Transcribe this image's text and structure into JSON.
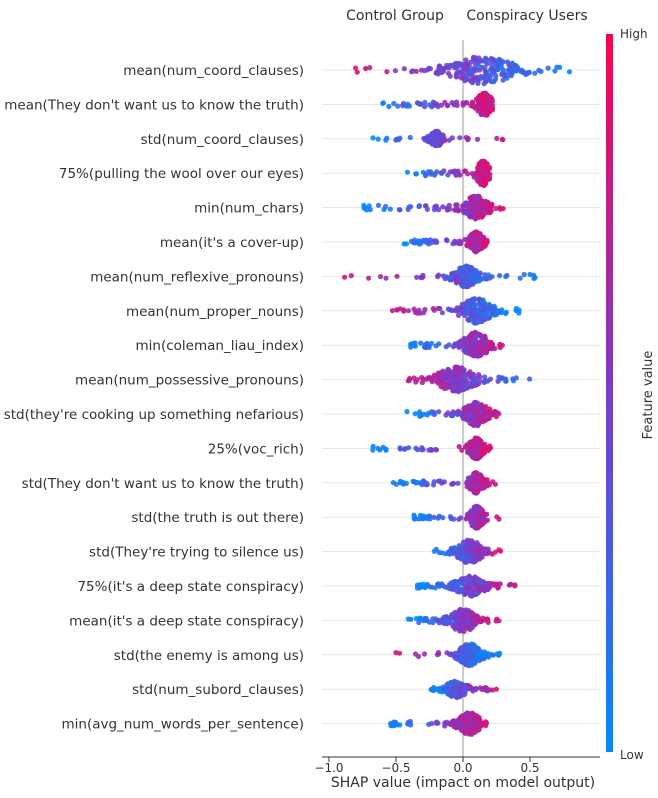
{
  "chart_data": {
    "type": "scatter",
    "subtype": "shap-beeswarm",
    "header_left": "Control Group",
    "header_right": "Conspiracy Users",
    "xlabel": "SHAP value (impact on model output)",
    "xlim": [
      -1.0,
      0.9
    ],
    "xticks": [
      -1.0,
      -0.5,
      0.0,
      0.5
    ],
    "xtick_labels": [
      "−1.0",
      "−0.5",
      "0.0",
      "0.5"
    ],
    "colorbar": {
      "label": "Feature value",
      "high": "High",
      "low": "Low",
      "color_low": "#008afb",
      "color_high": "#ff0052"
    },
    "grid": false,
    "features": [
      {
        "label": "mean(num_coord_clauses)",
        "min": -0.88,
        "max": 0.88,
        "center": 0.15,
        "spread": 0.35,
        "height": 1.0,
        "hi_side": "left"
      },
      {
        "label": "mean(They don't want us to know the truth)",
        "min": -0.62,
        "max": 0.22,
        "center": 0.16,
        "spread": 0.06,
        "height": 0.85,
        "hi_side": "right"
      },
      {
        "label": "std(num_coord_clauses)",
        "min": -0.68,
        "max": 0.35,
        "center": -0.2,
        "spread": 0.05,
        "height": 0.55,
        "hi_side": "right"
      },
      {
        "label": "75%(pulling the wool over our eyes)",
        "min": -0.42,
        "max": 0.2,
        "center": 0.15,
        "spread": 0.05,
        "height": 0.9,
        "hi_side": "right"
      },
      {
        "label": "min(num_chars)",
        "min": -0.75,
        "max": 0.32,
        "center": 0.1,
        "spread": 0.12,
        "height": 0.85,
        "hi_side": "right"
      },
      {
        "label": "mean(it's a cover-up)",
        "min": -0.45,
        "max": 0.18,
        "center": 0.1,
        "spread": 0.06,
        "height": 0.75,
        "hi_side": "right"
      },
      {
        "label": "mean(num_reflexive_pronouns)",
        "min": -0.92,
        "max": 0.55,
        "center": 0.02,
        "spread": 0.12,
        "height": 0.75,
        "hi_side": "left"
      },
      {
        "label": "mean(num_proper_nouns)",
        "min": -0.55,
        "max": 0.42,
        "center": 0.1,
        "spread": 0.15,
        "height": 0.9,
        "hi_side": "left"
      },
      {
        "label": "min(coleman_liau_index)",
        "min": -0.4,
        "max": 0.3,
        "center": 0.1,
        "spread": 0.12,
        "height": 0.95,
        "hi_side": "right"
      },
      {
        "label": "mean(num_possessive_pronouns)",
        "min": -0.45,
        "max": 0.68,
        "center": -0.05,
        "spread": 0.2,
        "height": 0.9,
        "hi_side": "left"
      },
      {
        "label": "std(they're cooking up something nefarious)",
        "min": -0.42,
        "max": 0.28,
        "center": 0.1,
        "spread": 0.12,
        "height": 0.85,
        "hi_side": "right"
      },
      {
        "label": "25%(voc_rich)",
        "min": -0.7,
        "max": 0.22,
        "center": 0.1,
        "spread": 0.06,
        "height": 0.75,
        "hi_side": "right"
      },
      {
        "label": "std(They don't want us to know the truth)",
        "min": -0.52,
        "max": 0.25,
        "center": 0.1,
        "spread": 0.06,
        "height": 0.75,
        "hi_side": "right"
      },
      {
        "label": "std(the truth is out there)",
        "min": -0.38,
        "max": 0.28,
        "center": 0.1,
        "spread": 0.06,
        "height": 0.8,
        "hi_side": "right"
      },
      {
        "label": "std(They're trying to silence us)",
        "min": -0.22,
        "max": 0.3,
        "center": 0.05,
        "spread": 0.12,
        "height": 0.85,
        "hi_side": "right"
      },
      {
        "label": "75%(it's a deep state conspiracy)",
        "min": -0.35,
        "max": 0.42,
        "center": 0.05,
        "spread": 0.15,
        "height": 0.75,
        "hi_side": "right"
      },
      {
        "label": "mean(it's a deep state conspiracy)",
        "min": -0.42,
        "max": 0.28,
        "center": 0.0,
        "spread": 0.12,
        "height": 0.85,
        "hi_side": "right"
      },
      {
        "label": "std(the enemy is among us)",
        "min": -0.52,
        "max": 0.28,
        "center": 0.05,
        "spread": 0.1,
        "height": 0.8,
        "hi_side": "left"
      },
      {
        "label": "std(num_subord_clauses)",
        "min": -0.25,
        "max": 0.25,
        "center": -0.05,
        "spread": 0.1,
        "height": 0.6,
        "hi_side": "right"
      },
      {
        "label": "min(avg_num_words_per_sentence)",
        "min": -0.55,
        "max": 0.2,
        "center": 0.05,
        "spread": 0.1,
        "height": 0.8,
        "hi_side": "right"
      }
    ]
  }
}
